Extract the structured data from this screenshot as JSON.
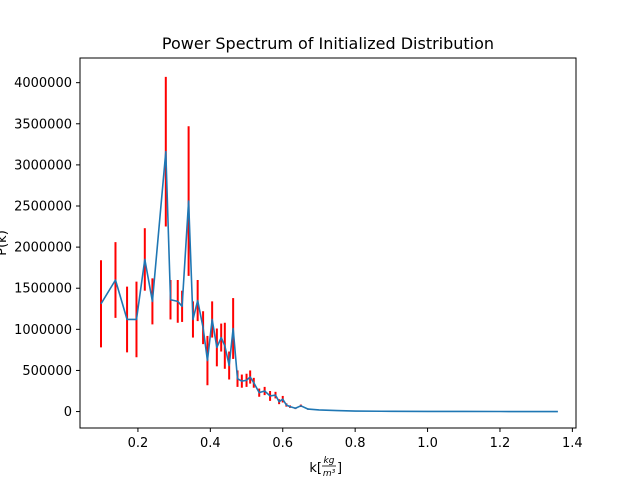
{
  "chart_data": {
    "type": "line",
    "title": "Power Spectrum of Initialized Distribution",
    "xlabel": {
      "prefix": "k[",
      "numerator": "kg",
      "denominator": "m³",
      "suffix": "]"
    },
    "ylabel": "P(k)",
    "xlim": [
      0.04,
      1.41
    ],
    "ylim": [
      -200000,
      4300000
    ],
    "xticks": [
      0.2,
      0.4,
      0.6,
      0.8,
      1.0,
      1.2,
      1.4
    ],
    "xtick_labels": [
      "0.2",
      "0.4",
      "0.6",
      "0.8",
      "1.0",
      "1.2",
      "1.4"
    ],
    "yticks": [
      0,
      500000,
      1000000,
      1500000,
      2000000,
      2500000,
      3000000,
      3500000,
      4000000
    ],
    "ytick_labels": [
      "0",
      "500000",
      "1000000",
      "1500000",
      "2000000",
      "2500000",
      "3000000",
      "3500000",
      "4000000"
    ],
    "grid": false,
    "line_color": "#1f77b4",
    "errorbar_color": "#ff0000",
    "series": [
      {
        "x": [
          0.098,
          0.138,
          0.17,
          0.196,
          0.219,
          0.24,
          0.277,
          0.29,
          0.31,
          0.322,
          0.34,
          0.352,
          0.365,
          0.38,
          0.392,
          0.405,
          0.418,
          0.43,
          0.44,
          0.452,
          0.463,
          0.475,
          0.487,
          0.5,
          0.51,
          0.52,
          0.535,
          0.55,
          0.565,
          0.58,
          0.59,
          0.6,
          0.61,
          0.62,
          0.635,
          0.65,
          0.67,
          0.7,
          0.75,
          0.8,
          0.9,
          1.0,
          1.1,
          1.2,
          1.3,
          1.36
        ],
        "y": [
          1310000,
          1600000,
          1120000,
          1120000,
          1850000,
          1340000,
          3160000,
          1360000,
          1340000,
          1280000,
          2560000,
          1120000,
          1350000,
          1020000,
          620000,
          1120000,
          780000,
          900000,
          800000,
          560000,
          1010000,
          400000,
          370000,
          380000,
          420000,
          350000,
          230000,
          250000,
          190000,
          200000,
          120000,
          150000,
          80000,
          60000,
          40000,
          70000,
          30000,
          20000,
          12000,
          6000,
          3000,
          2000,
          1000,
          500,
          300,
          200
        ],
        "yerr": [
          530000,
          460000,
          400000,
          460000,
          380000,
          280000,
          910000,
          240000,
          260000,
          190000,
          910000,
          220000,
          250000,
          200000,
          300000,
          220000,
          230000,
          170000,
          280000,
          170000,
          370000,
          100000,
          80000,
          80000,
          80000,
          60000,
          50000,
          50000,
          60000,
          40000,
          30000,
          40000,
          20000,
          15000,
          10000,
          15000,
          8000,
          5000,
          3000,
          2000,
          1000,
          500,
          300,
          200,
          100,
          100
        ]
      }
    ]
  }
}
